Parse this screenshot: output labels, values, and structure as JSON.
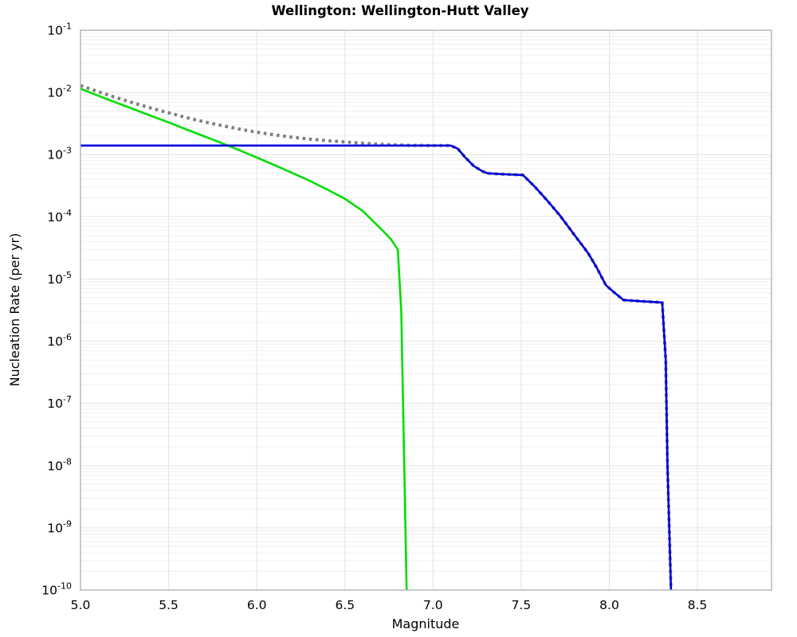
{
  "figure": {
    "background": "#ffffff",
    "frame_color": "#a6a6a6",
    "grid_major_color": "#e3e3e3",
    "grid_minor_color": "#f0f0f0"
  },
  "chart_data": {
    "type": "line",
    "title": "Wellington: Wellington-Hutt Valley",
    "xlabel": "Magnitude",
    "ylabel": "Nucleation Rate (per yr)",
    "xlim": [
      5.0,
      8.92
    ],
    "ylim": [
      1e-10,
      0.1
    ],
    "y_scale": "log",
    "grid": "major and log-minor gridlines, no legend",
    "legend_position": "none",
    "x_ticks": [
      5.0,
      5.5,
      6.0,
      6.5,
      7.0,
      7.5,
      8.0,
      8.5
    ],
    "x_tick_labels": [
      "5.0",
      "5.5",
      "6.0",
      "6.5",
      "7.0",
      "7.5",
      "8.0",
      "8.5"
    ],
    "y_tick_exponents": [
      -1,
      -2,
      -3,
      -4,
      -5,
      -6,
      -7,
      -8,
      -9,
      -10
    ],
    "series": [
      {
        "name": "total-rate-dotted-gray",
        "style": "dotted",
        "color": "#7f7f7f",
        "width": 4,
        "points": [
          [
            5.0,
            0.0129
          ],
          [
            5.1,
            0.0103
          ],
          [
            5.2,
            0.0083
          ],
          [
            5.3,
            0.0068
          ],
          [
            5.4,
            0.0056
          ],
          [
            5.5,
            0.0047
          ],
          [
            5.6,
            0.00395
          ],
          [
            5.7,
            0.00338
          ],
          [
            5.8,
            0.00294
          ],
          [
            5.9,
            0.00258
          ],
          [
            6.0,
            0.0023
          ],
          [
            6.1,
            0.00208
          ],
          [
            6.2,
            0.00191
          ],
          [
            6.3,
            0.00178
          ],
          [
            6.4,
            0.00168
          ],
          [
            6.5,
            0.0016
          ],
          [
            6.6,
            0.00153
          ],
          [
            6.7,
            0.00147
          ],
          [
            6.8,
            0.00143
          ],
          [
            6.9,
            0.00141
          ],
          [
            7.0,
            0.0014
          ],
          [
            7.1,
            0.0014
          ],
          [
            7.14,
            0.00125
          ],
          [
            7.18,
            0.00092
          ],
          [
            7.23,
            0.00066
          ],
          [
            7.28,
            0.00054
          ],
          [
            7.31,
            0.0005
          ],
          [
            7.4,
            0.000485
          ],
          [
            7.51,
            0.00047
          ],
          [
            7.58,
            0.0003
          ],
          [
            7.65,
            0.00018
          ],
          [
            7.72,
            0.000105
          ],
          [
            7.8,
            5.2e-05
          ],
          [
            7.88,
            2.6e-05
          ],
          [
            7.93,
            1.5e-05
          ],
          [
            7.98,
            8e-06
          ],
          [
            8.03,
            6e-06
          ],
          [
            8.08,
            4.6e-06
          ],
          [
            8.18,
            4.4e-06
          ],
          [
            8.3,
            4.2e-06
          ],
          [
            8.32,
            5e-07
          ],
          [
            8.33,
            1e-08
          ],
          [
            8.35,
            1e-10
          ]
        ]
      },
      {
        "name": "exponential-tapered-green",
        "style": "solid",
        "color": "#00dd00",
        "width": 2.6,
        "points": [
          [
            5.0,
            0.0115
          ],
          [
            5.1,
            0.0089
          ],
          [
            5.2,
            0.0069
          ],
          [
            5.3,
            0.0054
          ],
          [
            5.4,
            0.0042
          ],
          [
            5.5,
            0.0033
          ],
          [
            5.6,
            0.00255
          ],
          [
            5.7,
            0.00198
          ],
          [
            5.8,
            0.00154
          ],
          [
            5.9,
            0.00118
          ],
          [
            6.0,
            0.0009
          ],
          [
            6.1,
            0.00068
          ],
          [
            6.2,
            0.00051
          ],
          [
            6.3,
            0.00038
          ],
          [
            6.4,
            0.000275
          ],
          [
            6.5,
            0.000195
          ],
          [
            6.6,
            0.000125
          ],
          [
            6.7,
            6.6e-05
          ],
          [
            6.76,
            4.4e-05
          ],
          [
            6.8,
            3e-05
          ],
          [
            6.82,
            3e-06
          ],
          [
            6.83,
            1e-07
          ],
          [
            6.84,
            3e-09
          ],
          [
            6.85,
            1e-10
          ]
        ]
      },
      {
        "name": "characteristic-blue",
        "style": "solid",
        "color": "#0000dd",
        "width": 2.6,
        "points": [
          [
            5.0,
            0.0014
          ],
          [
            7.1,
            0.0014
          ],
          [
            7.14,
            0.00125
          ],
          [
            7.18,
            0.00092
          ],
          [
            7.23,
            0.00066
          ],
          [
            7.28,
            0.00054
          ],
          [
            7.31,
            0.0005
          ],
          [
            7.4,
            0.000485
          ],
          [
            7.51,
            0.00047
          ],
          [
            7.58,
            0.0003
          ],
          [
            7.65,
            0.00018
          ],
          [
            7.72,
            0.000105
          ],
          [
            7.8,
            5.2e-05
          ],
          [
            7.88,
            2.6e-05
          ],
          [
            7.93,
            1.5e-05
          ],
          [
            7.98,
            8e-06
          ],
          [
            8.03,
            6e-06
          ],
          [
            8.08,
            4.6e-06
          ],
          [
            8.18,
            4.4e-06
          ],
          [
            8.3,
            4.2e-06
          ],
          [
            8.32,
            5e-07
          ],
          [
            8.33,
            1e-08
          ],
          [
            8.35,
            1e-10
          ]
        ]
      }
    ]
  }
}
